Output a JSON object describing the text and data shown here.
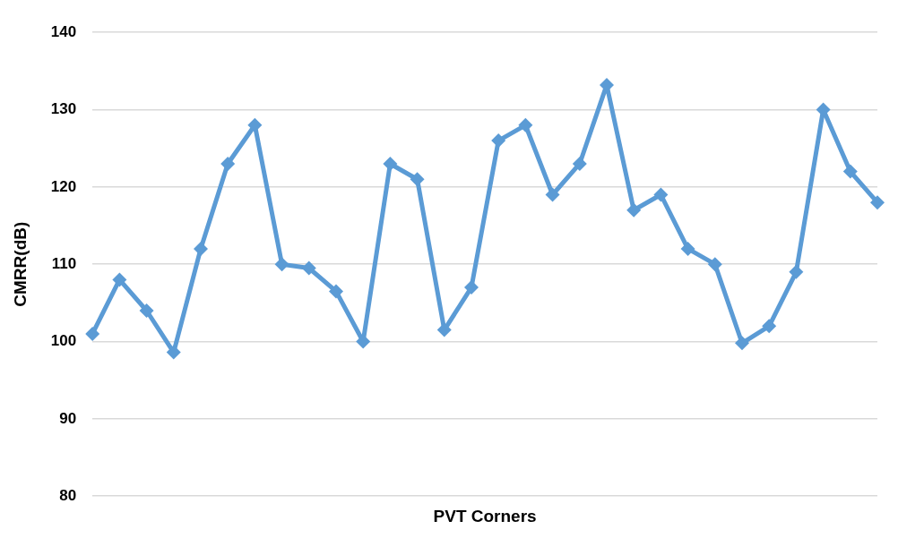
{
  "chart_data": {
    "type": "line",
    "xlabel": "PVT Corners",
    "ylabel": "CMRR(dB)",
    "categories": [
      null,
      null,
      null,
      null,
      null,
      null,
      null,
      null,
      null,
      null,
      null,
      null,
      null,
      null,
      null,
      null,
      null,
      null,
      null,
      null,
      null,
      null,
      null,
      null,
      null,
      null,
      null,
      null,
      null,
      null
    ],
    "series": [
      {
        "color": "#5b9bd5",
        "values": [
          101,
          108,
          104,
          98.6,
          112,
          123,
          128,
          110,
          109.5,
          106.5,
          100,
          123,
          121,
          101.5,
          107,
          126,
          128,
          119,
          123,
          133.2,
          117,
          119,
          112,
          110,
          99.8,
          102,
          109,
          130,
          122,
          118
        ]
      }
    ],
    "ylim": [
      80,
      140
    ],
    "yticks": [
      80,
      90,
      100,
      110,
      120,
      130,
      140
    ],
    "grid": "y",
    "legend": false,
    "tick_labels": "y",
    "marker": "diamond",
    "line_style": "solid"
  }
}
